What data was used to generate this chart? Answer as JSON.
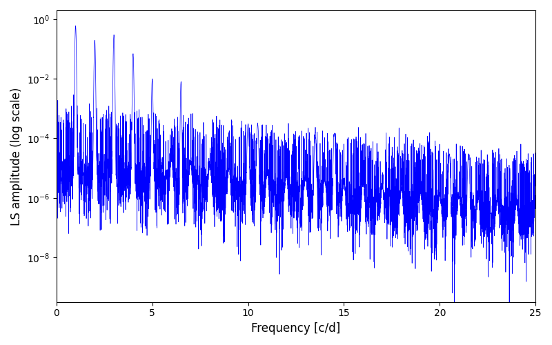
{
  "title": "",
  "xlabel": "Frequency [c/d]",
  "ylabel": "LS amplitude (log scale)",
  "xlim": [
    0,
    25
  ],
  "ylim_log": [
    -9.5,
    0.3
  ],
  "line_color": "#0000ff",
  "line_width": 0.5,
  "yscale": "log",
  "figsize": [
    8.0,
    5.0
  ],
  "dpi": 100,
  "background_color": "#ffffff",
  "n_points": 5000,
  "seed": 42,
  "freq_max": 25.0,
  "base_amplitude": 1e-05,
  "decay_rate": 0.15
}
